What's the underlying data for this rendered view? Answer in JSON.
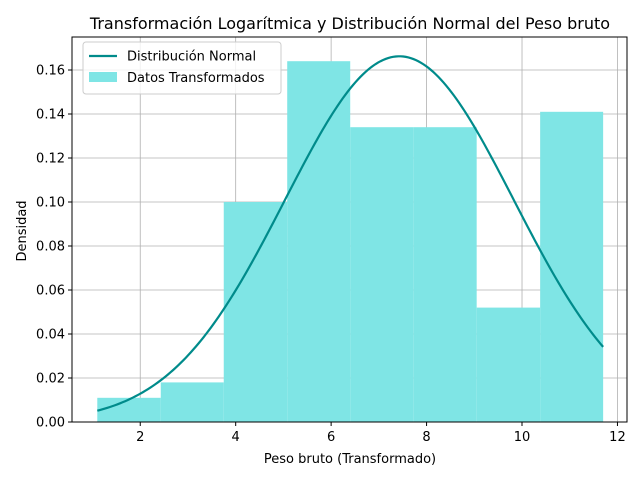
{
  "chart_data": {
    "type": "bar",
    "title": "Transformación Logarítmica y Distribución Normal del Peso bruto",
    "xlabel": "Peso bruto (Transformado)",
    "ylabel": "Densidad",
    "xlim": [
      0.57,
      12.2
    ],
    "ylim": [
      0,
      0.175
    ],
    "xticks": [
      2,
      4,
      6,
      8,
      10,
      12
    ],
    "yticks": [
      0.0,
      0.02,
      0.04,
      0.06,
      0.08,
      0.1,
      0.12,
      0.14,
      0.16
    ],
    "ytick_labels": [
      "0.00",
      "0.02",
      "0.04",
      "0.06",
      "0.08",
      "0.10",
      "0.12",
      "0.14",
      "0.16"
    ],
    "grid": true,
    "legend_position": "top-left",
    "histogram": {
      "name": "Datos Transformados",
      "color": "#7fe5e5",
      "bin_edges": [
        1.1,
        2.43,
        3.75,
        5.08,
        6.4,
        7.73,
        9.05,
        10.38,
        11.7
      ],
      "densities": [
        0.011,
        0.018,
        0.1,
        0.164,
        0.134,
        0.134,
        0.052,
        0.141
      ]
    },
    "curve": {
      "name": "Distribución Normal",
      "color": "#008b8b",
      "mean": 7.43,
      "std": 2.4,
      "x_range": [
        1.1,
        11.7
      ]
    }
  }
}
